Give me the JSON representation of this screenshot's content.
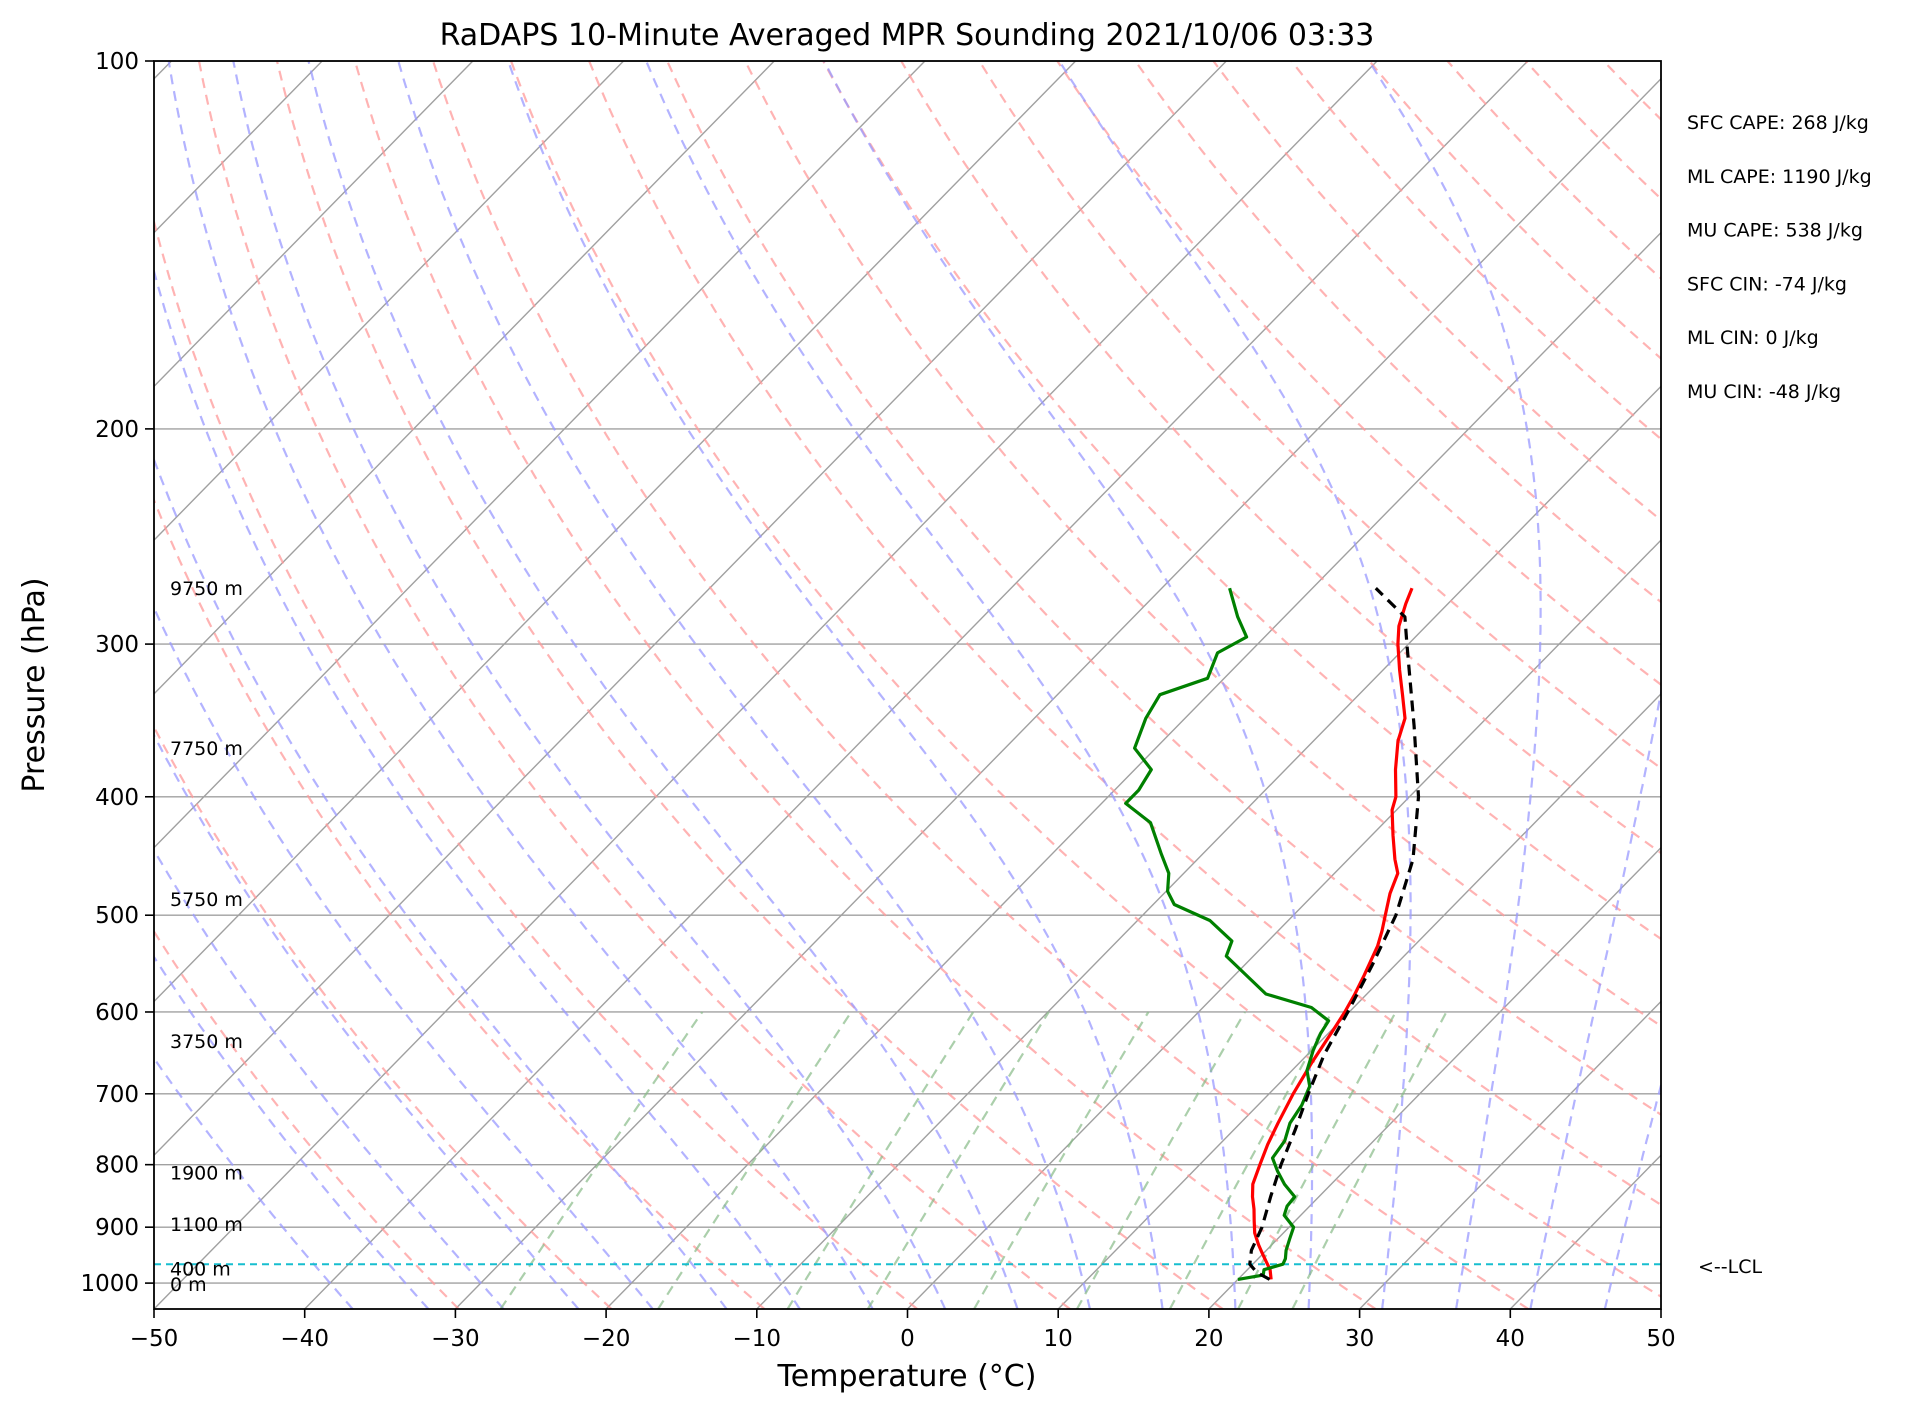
{
  "chart_data": {
    "type": "line",
    "subtype": "skew-t log-p",
    "title": "RaDAPS 10-Minute Averaged MPR Sounding 2021/10/06 03:33",
    "xlabel": "Temperature (°C)",
    "ylabel": "Pressure (hPa)",
    "xlim": [
      -50,
      50
    ],
    "ylim": [
      1050,
      100
    ],
    "y_scale": "log",
    "grid": true,
    "x_ticks": [
      -50,
      -40,
      -30,
      -20,
      -10,
      0,
      10,
      20,
      30,
      40,
      50
    ],
    "x_tick_labels": [
      "−50",
      "−40",
      "−30",
      "−20",
      "−10",
      "0",
      "10",
      "20",
      "30",
      "40",
      "50"
    ],
    "y_ticks": [
      100,
      200,
      300,
      400,
      500,
      600,
      700,
      800,
      900,
      1000
    ],
    "y_tick_labels": [
      "100",
      "200",
      "300",
      "400",
      "500",
      "600",
      "700",
      "800",
      "900",
      "1000"
    ],
    "height_labels": [
      {
        "p": 270,
        "label": "9750 m"
      },
      {
        "p": 365,
        "label": "7750 m"
      },
      {
        "p": 485,
        "label": "5750 m"
      },
      {
        "p": 634,
        "label": "3750 m"
      },
      {
        "p": 812,
        "label": "1900 m"
      },
      {
        "p": 895,
        "label": "1100 m"
      },
      {
        "p": 973,
        "label": "400 m"
      },
      {
        "p": 1002,
        "label": "0 m"
      }
    ],
    "lcl": {
      "p": 965,
      "label": "<--LCL",
      "color": "#17becf"
    },
    "stats": [
      "SFC CAPE: 268 J/kg",
      "ML CAPE: 1190 J/kg",
      "MU CAPE: 538 J/kg",
      "SFC CIN: -74 J/kg",
      "ML CIN: 0 J/kg",
      "MU CIN: -48 J/kg"
    ],
    "series": [
      {
        "type": "temperature",
        "color": "#ff0000",
        "points": [
          [
            993,
            22.2
          ],
          [
            975,
            21.5
          ],
          [
            960,
            20.7
          ],
          [
            945,
            19.9
          ],
          [
            930,
            19.1
          ],
          [
            910,
            18.1
          ],
          [
            890,
            17.3
          ],
          [
            870,
            16.5
          ],
          [
            850,
            15.6
          ],
          [
            830,
            14.8
          ],
          [
            800,
            14.0
          ],
          [
            770,
            13.2
          ],
          [
            740,
            12.5
          ],
          [
            700,
            11.6
          ],
          [
            660,
            10.8
          ],
          [
            620,
            10.1
          ],
          [
            600,
            9.7
          ],
          [
            580,
            9.2
          ],
          [
            560,
            8.6
          ],
          [
            545,
            8.1
          ],
          [
            530,
            7.6
          ],
          [
            515,
            6.9
          ],
          [
            500,
            6.1
          ],
          [
            480,
            5.0
          ],
          [
            462,
            4.2
          ],
          [
            450,
            3.1
          ],
          [
            430,
            1.4
          ],
          [
            410,
            -0.3
          ],
          [
            400,
            -0.9
          ],
          [
            380,
            -2.7
          ],
          [
            360,
            -4.4
          ],
          [
            345,
            -5.4
          ],
          [
            330,
            -7.1
          ],
          [
            315,
            -8.9
          ],
          [
            300,
            -10.7
          ],
          [
            290,
            -11.8
          ],
          [
            278,
            -12.8
          ],
          [
            270,
            -13.4
          ]
        ]
      },
      {
        "type": "dewpoint",
        "color": "#008000",
        "points": [
          [
            993,
            20.0
          ],
          [
            985,
            21.4
          ],
          [
            975,
            21.1
          ],
          [
            965,
            22.0
          ],
          [
            955,
            21.8
          ],
          [
            940,
            21.3
          ],
          [
            920,
            20.8
          ],
          [
            900,
            20.3
          ],
          [
            880,
            18.9
          ],
          [
            865,
            18.5
          ],
          [
            850,
            18.4
          ],
          [
            830,
            16.9
          ],
          [
            810,
            15.6
          ],
          [
            790,
            14.4
          ],
          [
            765,
            14.1
          ],
          [
            740,
            13.3
          ],
          [
            715,
            12.9
          ],
          [
            690,
            12.2
          ],
          [
            670,
            11.0
          ],
          [
            645,
            10.1
          ],
          [
            625,
            9.5
          ],
          [
            610,
            9.2
          ],
          [
            595,
            7.2
          ],
          [
            580,
            3.3
          ],
          [
            540,
            -1.8
          ],
          [
            525,
            -2.4
          ],
          [
            505,
            -5.2
          ],
          [
            490,
            -8.6
          ],
          [
            478,
            -9.9
          ],
          [
            462,
            -11.0
          ],
          [
            445,
            -12.8
          ],
          [
            420,
            -15.5
          ],
          [
            405,
            -18.4
          ],
          [
            395,
            -18.4
          ],
          [
            380,
            -18.9
          ],
          [
            365,
            -21.4
          ],
          [
            345,
            -22.6
          ],
          [
            330,
            -23.2
          ],
          [
            320,
            -21.1
          ],
          [
            305,
            -22.1
          ],
          [
            296,
            -21.2
          ],
          [
            285,
            -23.1
          ],
          [
            270,
            -25.5
          ]
        ]
      },
      {
        "type": "parcel",
        "color": "#000000",
        "dashed": true,
        "points": [
          [
            993,
            22.1
          ],
          [
            980,
            20.8
          ],
          [
            965,
            19.8
          ],
          [
            940,
            19.0
          ],
          [
            900,
            18.2
          ],
          [
            850,
            16.8
          ],
          [
            800,
            15.4
          ],
          [
            750,
            14.1
          ],
          [
            700,
            12.6
          ],
          [
            650,
            11.1
          ],
          [
            600,
            9.9
          ],
          [
            550,
            8.5
          ],
          [
            500,
            6.8
          ],
          [
            450,
            4.3
          ],
          [
            400,
            0.6
          ],
          [
            350,
            -4.3
          ],
          [
            300,
            -10.1
          ],
          [
            285,
            -12.0
          ],
          [
            270,
            -15.8
          ]
        ]
      }
    ],
    "reference_lines": {
      "dry_adiabats_color": "#ff9999",
      "moist_adiabats_color": "#9999ff",
      "mixing_ratio_color": "#88bb88",
      "isotherms_color": "#a0a0a0",
      "isobars_color": "#a0a0a0"
    }
  }
}
